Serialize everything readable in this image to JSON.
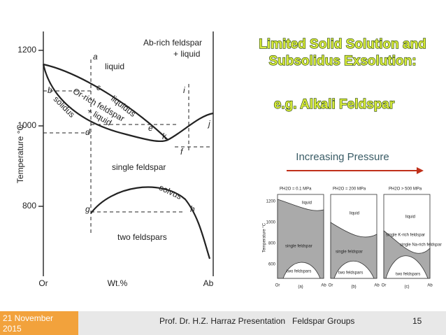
{
  "header": {
    "title_lines": [
      "Limited Solid Solution and",
      "Subsolidus Exsolution:"
    ],
    "subtitle": "e.g. Alkali Feldspar",
    "pressure_label": "Increasing Pressure"
  },
  "diagram": {
    "y_axis_title": "Temperature °C",
    "y_ticks": [
      "1200",
      "1000",
      "800"
    ],
    "x_left": "Or",
    "x_mid": "Wt.%",
    "x_right": "Ab",
    "fields": [
      "liquid",
      "Ab-rich  feldspar",
      "+ liquid",
      "liquidus",
      "solidus",
      "Or-rich feldspar",
      "+ liquid",
      "single feldspar",
      "solvus",
      "two feldspars"
    ],
    "points": [
      "a",
      "b",
      "c",
      "d",
      "e",
      "f",
      "g",
      "h",
      "i",
      "j",
      "k"
    ]
  },
  "inset": {
    "y_axis_title": "Temperature °C",
    "y_ticks": [
      "1200",
      "1000",
      "800",
      "600"
    ],
    "panels": [
      {
        "pressure": "PH2O = 0.1 MPa",
        "labels": [
          "liquid",
          "single feldspar",
          "two feldspars"
        ],
        "tag": "(a)",
        "left": "Or",
        "right": "Ab"
      },
      {
        "pressure": "PH2O = 200 MPa",
        "labels": [
          "liquid",
          "single feldspar",
          "two feldspars"
        ],
        "tag": "(b)",
        "left": "Or",
        "right": "Ab"
      },
      {
        "pressure": "PH2O > 500 MPa",
        "labels": [
          "liquid",
          "single K-rich feldspar",
          "single Na-rich feldspar",
          "two feldspars"
        ],
        "tag": "(c)",
        "left": "Or",
        "right": "Ab"
      }
    ]
  },
  "footer": {
    "date": "21 November 2015",
    "presentation": "Prof. Dr. H.Z. Harraz Presentation   Feldspar Groups",
    "page": "15"
  }
}
